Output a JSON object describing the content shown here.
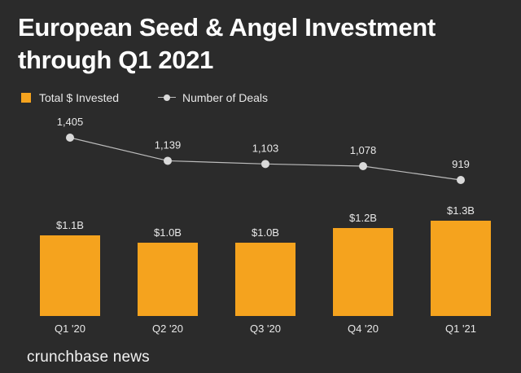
{
  "title": "European Seed & Angel Investment through Q1 2021",
  "brand": "crunchbase news",
  "colors": {
    "background": "#2b2b2b",
    "bar": "#f5a31e",
    "line": "#bdbdbd",
    "marker": "#d9d9d9",
    "text": "#ffffff",
    "label": "#e8e8e8"
  },
  "legend": [
    {
      "label": "Total $ Invested",
      "marker": "square"
    },
    {
      "label": "Number of Deals",
      "marker": "line-dot"
    }
  ],
  "chart_data": {
    "type": "bar",
    "categories": [
      "Q1 '20",
      "Q2 '20",
      "Q3 '20",
      "Q4 '20",
      "Q1 '21"
    ],
    "series": [
      {
        "name": "Total $ Invested",
        "type": "bar",
        "unit": "billion USD",
        "values": [
          1.1,
          1.0,
          1.0,
          1.2,
          1.3
        ],
        "labels": [
          "$1.1B",
          "$1.0B",
          "$1.0B",
          "$1.2B",
          "$1.3B"
        ]
      },
      {
        "name": "Number of Deals",
        "type": "line",
        "values": [
          1405,
          1139,
          1103,
          1078,
          919
        ],
        "labels": [
          "1,405",
          "1,139",
          "1,103",
          "1,078",
          "919"
        ]
      }
    ],
    "xlabel": "",
    "ylabel": "",
    "bar_ylim": [
      0,
      1.3
    ],
    "line_ylim": [
      919,
      1405
    ],
    "grid": false,
    "legend_position": "top-left"
  }
}
